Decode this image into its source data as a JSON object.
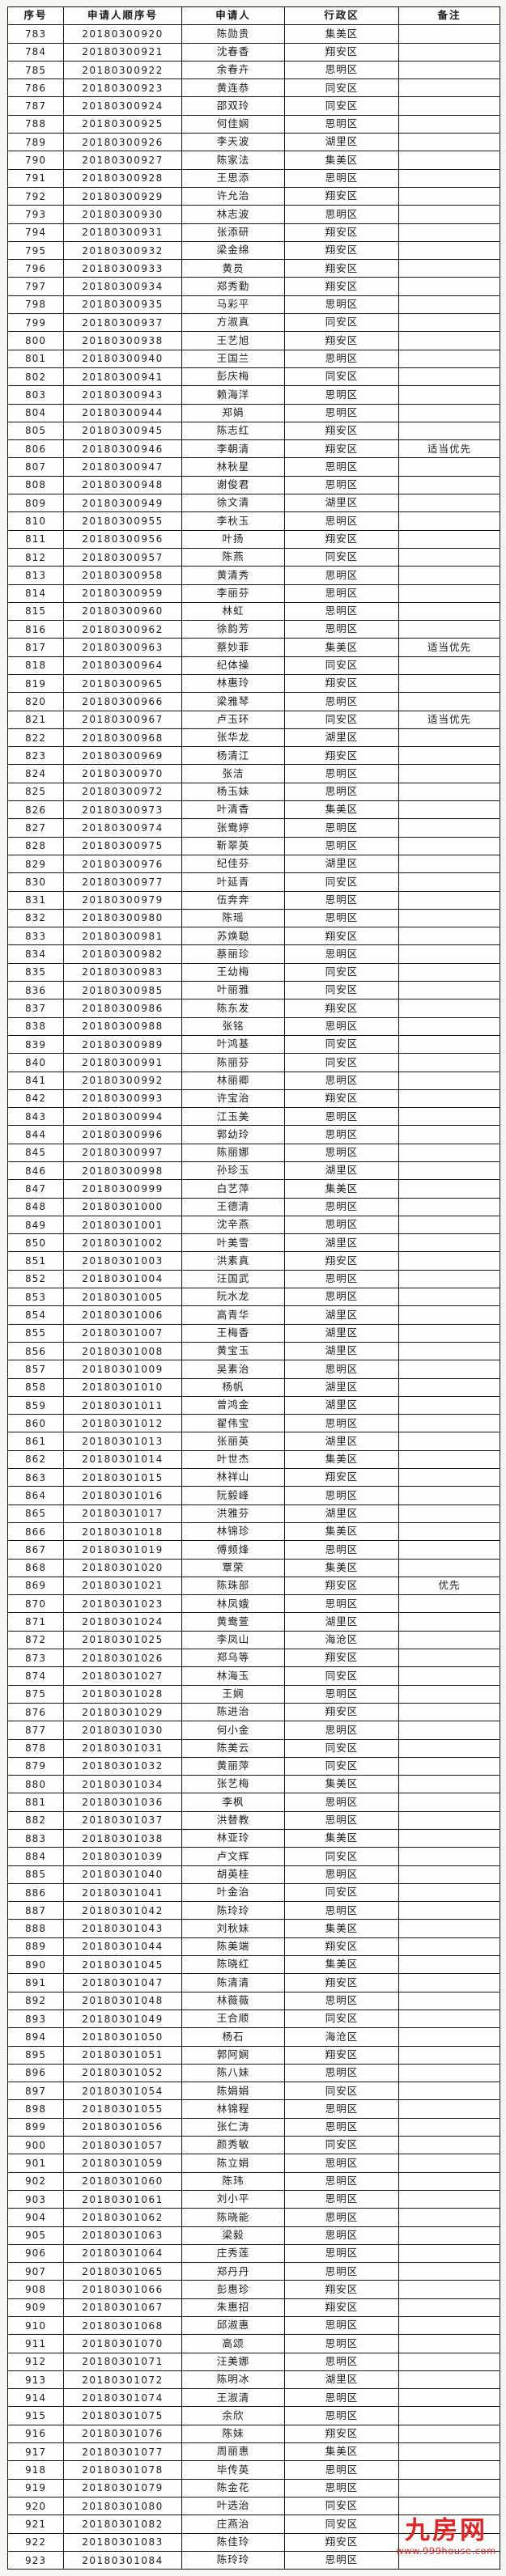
{
  "table": {
    "columns": [
      "序号",
      "申请人顺序号",
      "申请人",
      "行政区",
      "备注"
    ],
    "rows": [
      [
        "783",
        "20180300920",
        "陈勋贵",
        "集美区",
        ""
      ],
      [
        "784",
        "20180300921",
        "沈春香",
        "翔安区",
        ""
      ],
      [
        "785",
        "20180300922",
        "余春卉",
        "思明区",
        ""
      ],
      [
        "786",
        "20180300923",
        "黄连恭",
        "同安区",
        ""
      ],
      [
        "787",
        "20180300924",
        "邵双玲",
        "同安区",
        ""
      ],
      [
        "788",
        "20180300925",
        "何佳娴",
        "思明区",
        ""
      ],
      [
        "789",
        "20180300926",
        "李天波",
        "湖里区",
        ""
      ],
      [
        "790",
        "20180300927",
        "陈家法",
        "集美区",
        ""
      ],
      [
        "791",
        "20180300928",
        "王思添",
        "思明区",
        ""
      ],
      [
        "792",
        "20180300929",
        "许允治",
        "翔安区",
        ""
      ],
      [
        "793",
        "20180300930",
        "林志波",
        "思明区",
        ""
      ],
      [
        "794",
        "20180300931",
        "张添研",
        "翔安区",
        ""
      ],
      [
        "795",
        "20180300932",
        "梁金绵",
        "翔安区",
        ""
      ],
      [
        "796",
        "20180300933",
        "黄员",
        "翔安区",
        ""
      ],
      [
        "797",
        "20180300934",
        "郑秀勤",
        "翔安区",
        ""
      ],
      [
        "798",
        "20180300935",
        "马彩平",
        "思明区",
        ""
      ],
      [
        "799",
        "20180300937",
        "方淑真",
        "同安区",
        ""
      ],
      [
        "800",
        "20180300938",
        "王艺旭",
        "翔安区",
        ""
      ],
      [
        "801",
        "20180300940",
        "王国兰",
        "思明区",
        ""
      ],
      [
        "802",
        "20180300941",
        "彭庆梅",
        "同安区",
        ""
      ],
      [
        "803",
        "20180300943",
        "赖海洋",
        "思明区",
        ""
      ],
      [
        "804",
        "20180300944",
        "郑娟",
        "思明区",
        ""
      ],
      [
        "805",
        "20180300945",
        "陈志红",
        "翔安区",
        ""
      ],
      [
        "806",
        "20180300946",
        "李朝清",
        "翔安区",
        "适当优先"
      ],
      [
        "807",
        "20180300947",
        "林秋星",
        "思明区",
        ""
      ],
      [
        "808",
        "20180300948",
        "谢俊君",
        "思明区",
        ""
      ],
      [
        "809",
        "20180300949",
        "徐文清",
        "湖里区",
        ""
      ],
      [
        "810",
        "20180300955",
        "李秋玉",
        "思明区",
        ""
      ],
      [
        "811",
        "20180300956",
        "叶扬",
        "翔安区",
        ""
      ],
      [
        "812",
        "20180300957",
        "陈燕",
        "同安区",
        ""
      ],
      [
        "813",
        "20180300958",
        "黄清秀",
        "思明区",
        ""
      ],
      [
        "814",
        "20180300959",
        "李丽芬",
        "思明区",
        ""
      ],
      [
        "815",
        "20180300960",
        "林虹",
        "思明区",
        ""
      ],
      [
        "816",
        "20180300962",
        "徐韵芳",
        "思明区",
        ""
      ],
      [
        "817",
        "20180300963",
        "蔡妙菲",
        "集美区",
        "适当优先"
      ],
      [
        "818",
        "20180300964",
        "纪体操",
        "同安区",
        ""
      ],
      [
        "819",
        "20180300965",
        "林惠玲",
        "翔安区",
        ""
      ],
      [
        "820",
        "20180300966",
        "梁雅琴",
        "思明区",
        ""
      ],
      [
        "821",
        "20180300967",
        "卢玉环",
        "同安区",
        "适当优先"
      ],
      [
        "822",
        "20180300968",
        "张华龙",
        "湖里区",
        ""
      ],
      [
        "823",
        "20180300969",
        "杨清江",
        "翔安区",
        ""
      ],
      [
        "824",
        "20180300970",
        "张洁",
        "思明区",
        ""
      ],
      [
        "825",
        "20180300972",
        "杨玉妹",
        "思明区",
        ""
      ],
      [
        "826",
        "20180300973",
        "叶清香",
        "集美区",
        ""
      ],
      [
        "827",
        "20180300974",
        "张鸯婷",
        "思明区",
        ""
      ],
      [
        "828",
        "20180300975",
        "靳翠英",
        "思明区",
        ""
      ],
      [
        "829",
        "20180300976",
        "纪佳芬",
        "湖里区",
        ""
      ],
      [
        "830",
        "20180300977",
        "叶延青",
        "同安区",
        ""
      ],
      [
        "831",
        "20180300979",
        "伍奔奔",
        "思明区",
        ""
      ],
      [
        "832",
        "20180300980",
        "陈瑶",
        "思明区",
        ""
      ],
      [
        "833",
        "20180300981",
        "苏焕聪",
        "翔安区",
        ""
      ],
      [
        "834",
        "20180300982",
        "蔡丽珍",
        "思明区",
        ""
      ],
      [
        "835",
        "20180300983",
        "王幼梅",
        "同安区",
        ""
      ],
      [
        "836",
        "20180300985",
        "叶丽雅",
        "同安区",
        ""
      ],
      [
        "837",
        "20180300986",
        "陈东发",
        "翔安区",
        ""
      ],
      [
        "838",
        "20180300988",
        "张铭",
        "思明区",
        ""
      ],
      [
        "839",
        "20180300989",
        "叶鸿基",
        "同安区",
        ""
      ],
      [
        "840",
        "20180300991",
        "陈丽芬",
        "同安区",
        ""
      ],
      [
        "841",
        "20180300992",
        "林丽卿",
        "思明区",
        ""
      ],
      [
        "842",
        "20180300993",
        "许宝治",
        "翔安区",
        ""
      ],
      [
        "843",
        "20180300994",
        "江玉美",
        "思明区",
        ""
      ],
      [
        "844",
        "20180300996",
        "郭幼玲",
        "思明区",
        ""
      ],
      [
        "845",
        "20180300997",
        "陈丽娜",
        "思明区",
        ""
      ],
      [
        "846",
        "20180300998",
        "孙珍玉",
        "湖里区",
        ""
      ],
      [
        "847",
        "20180300999",
        "白艺萍",
        "集美区",
        ""
      ],
      [
        "848",
        "20180301000",
        "王德清",
        "思明区",
        ""
      ],
      [
        "849",
        "20180301001",
        "沈辛燕",
        "思明区",
        ""
      ],
      [
        "850",
        "20180301002",
        "叶美雪",
        "湖里区",
        ""
      ],
      [
        "851",
        "20180301003",
        "洪素真",
        "翔安区",
        ""
      ],
      [
        "852",
        "20180301004",
        "汪国武",
        "思明区",
        ""
      ],
      [
        "853",
        "20180301005",
        "阮水龙",
        "思明区",
        ""
      ],
      [
        "854",
        "20180301006",
        "高青华",
        "湖里区",
        ""
      ],
      [
        "855",
        "20180301007",
        "王梅香",
        "湖里区",
        ""
      ],
      [
        "856",
        "20180301008",
        "黄宝玉",
        "湖里区",
        ""
      ],
      [
        "857",
        "20180301009",
        "吴素治",
        "思明区",
        ""
      ],
      [
        "858",
        "20180301010",
        "杨帆",
        "湖里区",
        ""
      ],
      [
        "859",
        "20180301011",
        "曾鸿金",
        "湖里区",
        ""
      ],
      [
        "860",
        "20180301012",
        "翟伟宝",
        "思明区",
        ""
      ],
      [
        "861",
        "20180301013",
        "张丽英",
        "湖里区",
        ""
      ],
      [
        "862",
        "20180301014",
        "叶世杰",
        "集美区",
        ""
      ],
      [
        "863",
        "20180301015",
        "林祥山",
        "翔安区",
        ""
      ],
      [
        "864",
        "20180301016",
        "阮毅峰",
        "思明区",
        ""
      ],
      [
        "865",
        "20180301017",
        "洪雅芬",
        "湖里区",
        ""
      ],
      [
        "866",
        "20180301018",
        "林锦珍",
        "集美区",
        ""
      ],
      [
        "867",
        "20180301019",
        "傅频烽",
        "思明区",
        ""
      ],
      [
        "868",
        "20180301020",
        "覃荣",
        "集美区",
        ""
      ],
      [
        "869",
        "20180301021",
        "陈珠部",
        "翔安区",
        "优先"
      ],
      [
        "870",
        "20180301023",
        "林凤娥",
        "思明区",
        ""
      ],
      [
        "871",
        "20180301024",
        "黄鸯萱",
        "湖里区",
        ""
      ],
      [
        "872",
        "20180301025",
        "李凤山",
        "海沧区",
        ""
      ],
      [
        "873",
        "20180301026",
        "郑乌等",
        "翔安区",
        ""
      ],
      [
        "874",
        "20180301027",
        "林海玉",
        "同安区",
        ""
      ],
      [
        "875",
        "20180301028",
        "王娴",
        "思明区",
        ""
      ],
      [
        "876",
        "20180301029",
        "陈进治",
        "翔安区",
        ""
      ],
      [
        "877",
        "20180301030",
        "何小金",
        "思明区",
        ""
      ],
      [
        "878",
        "20180301031",
        "陈美云",
        "同安区",
        ""
      ],
      [
        "879",
        "20180301032",
        "黄丽萍",
        "同安区",
        ""
      ],
      [
        "880",
        "20180301034",
        "张艺梅",
        "集美区",
        ""
      ],
      [
        "881",
        "20180301036",
        "李枫",
        "思明区",
        ""
      ],
      [
        "882",
        "20180301037",
        "洪替教",
        "思明区",
        ""
      ],
      [
        "883",
        "20180301038",
        "林亚玲",
        "集美区",
        ""
      ],
      [
        "884",
        "20180301039",
        "卢文辉",
        "同安区",
        ""
      ],
      [
        "885",
        "20180301040",
        "胡英桂",
        "思明区",
        ""
      ],
      [
        "886",
        "20180301041",
        "叶金治",
        "同安区",
        ""
      ],
      [
        "887",
        "20180301042",
        "陈玲玲",
        "思明区",
        ""
      ],
      [
        "888",
        "20180301043",
        "刘秋妹",
        "集美区",
        ""
      ],
      [
        "889",
        "20180301044",
        "陈美端",
        "翔安区",
        ""
      ],
      [
        "890",
        "20180301045",
        "陈晓红",
        "集美区",
        ""
      ],
      [
        "891",
        "20180301047",
        "陈清清",
        "翔安区",
        ""
      ],
      [
        "892",
        "20180301048",
        "林薇薇",
        "思明区",
        ""
      ],
      [
        "893",
        "20180301049",
        "王合顺",
        "同安区",
        ""
      ],
      [
        "894",
        "20180301050",
        "杨石",
        "海沧区",
        ""
      ],
      [
        "895",
        "20180301051",
        "郭阿娴",
        "翔安区",
        ""
      ],
      [
        "896",
        "20180301052",
        "陈八妹",
        "思明区",
        ""
      ],
      [
        "897",
        "20180301054",
        "陈娟娟",
        "同安区",
        ""
      ],
      [
        "898",
        "20180301055",
        "林锦程",
        "思明区",
        ""
      ],
      [
        "899",
        "20180301056",
        "张仁涛",
        "思明区",
        ""
      ],
      [
        "900",
        "20180301057",
        "颜秀敏",
        "同安区",
        ""
      ],
      [
        "901",
        "20180301059",
        "陈立娟",
        "思明区",
        ""
      ],
      [
        "902",
        "20180301060",
        "陈玮",
        "思明区",
        ""
      ],
      [
        "903",
        "20180301061",
        "刘小平",
        "思明区",
        ""
      ],
      [
        "904",
        "20180301062",
        "陈晓能",
        "思明区",
        ""
      ],
      [
        "905",
        "20180301063",
        "梁毅",
        "思明区",
        ""
      ],
      [
        "906",
        "20180301064",
        "庄秀莲",
        "思明区",
        ""
      ],
      [
        "907",
        "20180301065",
        "郑丹丹",
        "思明区",
        ""
      ],
      [
        "908",
        "20180301066",
        "彭惠珍",
        "翔安区",
        ""
      ],
      [
        "909",
        "20180301067",
        "朱惠招",
        "翔安区",
        ""
      ],
      [
        "910",
        "20180301068",
        "邱淑惠",
        "思明区",
        ""
      ],
      [
        "911",
        "20180301070",
        "高颂",
        "思明区",
        ""
      ],
      [
        "912",
        "20180301071",
        "汪美娜",
        "思明区",
        ""
      ],
      [
        "913",
        "20180301072",
        "陈明冰",
        "湖里区",
        ""
      ],
      [
        "914",
        "20180301074",
        "王淑清",
        "思明区",
        ""
      ],
      [
        "915",
        "20180301075",
        "余欣",
        "思明区",
        ""
      ],
      [
        "916",
        "20180301076",
        "陈妹",
        "翔安区",
        ""
      ],
      [
        "917",
        "20180301077",
        "周丽惠",
        "集美区",
        ""
      ],
      [
        "918",
        "20180301078",
        "毕传英",
        "思明区",
        ""
      ],
      [
        "919",
        "20180301079",
        "陈金花",
        "思明区",
        ""
      ],
      [
        "920",
        "20180301080",
        "叶选治",
        "同安区",
        ""
      ],
      [
        "921",
        "20180301082",
        "庄燕治",
        "同安区",
        ""
      ],
      [
        "922",
        "20180301083",
        "陈佳玲",
        "翔安区",
        ""
      ],
      [
        "923",
        "20180301084",
        "陈玲玲",
        "思明区",
        ""
      ]
    ]
  },
  "watermark": {
    "brand": "九房网",
    "url": "www.999house.com",
    "color": "#e02525"
  }
}
